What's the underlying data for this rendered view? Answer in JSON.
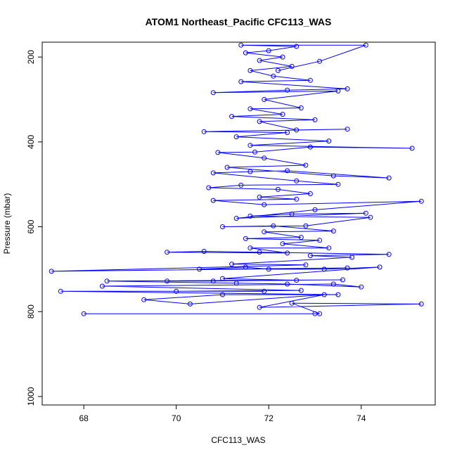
{
  "chart_data": {
    "type": "line",
    "title": "ATOM1 Northeast_Pacific CFC113_WAS",
    "xlabel": "CFC113_WAS",
    "ylabel": "Pressure (mbar)",
    "xlim": [
      67.1,
      75.6
    ],
    "ylim": [
      1020,
      165
    ],
    "y_reversed": true,
    "x_ticks": [
      68,
      70,
      72,
      74
    ],
    "y_ticks": [
      200,
      400,
      600,
      800,
      1000
    ],
    "grid": false,
    "legend": "none",
    "series": [
      {
        "color": "#0000ff",
        "marker": "open-circle",
        "points": [
          [
            68.0,
            805
          ],
          [
            73.0,
            805
          ],
          [
            73.1,
            805
          ],
          [
            72.5,
            780
          ],
          [
            75.3,
            782
          ],
          [
            71.8,
            790
          ],
          [
            73.2,
            760
          ],
          [
            70.3,
            782
          ],
          [
            69.3,
            772
          ],
          [
            71.0,
            760
          ],
          [
            73.5,
            760
          ],
          [
            67.5,
            752
          ],
          [
            71.9,
            752
          ],
          [
            70.0,
            752
          ],
          [
            72.7,
            750
          ],
          [
            68.4,
            740
          ],
          [
            73.4,
            735
          ],
          [
            74.0,
            742
          ],
          [
            72.4,
            735
          ],
          [
            71.3,
            733
          ],
          [
            68.5,
            728
          ],
          [
            73.6,
            725
          ],
          [
            69.8,
            728
          ],
          [
            70.8,
            728
          ],
          [
            72.6,
            726
          ],
          [
            71.0,
            722
          ],
          [
            74.4,
            695
          ],
          [
            73.2,
            700
          ],
          [
            72.0,
            700
          ],
          [
            71.5,
            695
          ],
          [
            70.5,
            700
          ],
          [
            73.7,
            697
          ],
          [
            67.3,
            705
          ],
          [
            72.8,
            690
          ],
          [
            71.2,
            688
          ],
          [
            73.8,
            672
          ],
          [
            72.9,
            668
          ],
          [
            74.6,
            665
          ],
          [
            71.8,
            660
          ],
          [
            70.6,
            658
          ],
          [
            69.8,
            660
          ],
          [
            72.4,
            662
          ],
          [
            71.6,
            650
          ],
          [
            73.3,
            650
          ],
          [
            72.3,
            640
          ],
          [
            73.1,
            632
          ],
          [
            71.5,
            628
          ],
          [
            72.7,
            625
          ],
          [
            71.9,
            612
          ],
          [
            73.4,
            610
          ],
          [
            72.1,
            598
          ],
          [
            71.0,
            600
          ],
          [
            72.8,
            598
          ],
          [
            74.2,
            578
          ],
          [
            71.6,
            575
          ],
          [
            72.5,
            570
          ],
          [
            74.1,
            568
          ],
          [
            71.3,
            580
          ],
          [
            73.0,
            560
          ],
          [
            75.3,
            540
          ],
          [
            71.9,
            548
          ],
          [
            70.8,
            538
          ],
          [
            72.6,
            535
          ],
          [
            71.8,
            530
          ],
          [
            72.9,
            522
          ],
          [
            72.2,
            512
          ],
          [
            70.7,
            508
          ],
          [
            71.4,
            502
          ],
          [
            73.5,
            500
          ],
          [
            72.6,
            492
          ],
          [
            70.8,
            473
          ],
          [
            71.6,
            470
          ],
          [
            72.4,
            468
          ],
          [
            74.6,
            485
          ],
          [
            73.4,
            480
          ],
          [
            71.1,
            460
          ],
          [
            72.8,
            455
          ],
          [
            71.9,
            438
          ],
          [
            70.9,
            425
          ],
          [
            71.7,
            424
          ],
          [
            72.9,
            412
          ],
          [
            75.1,
            415
          ],
          [
            71.6,
            408
          ],
          [
            73.3,
            398
          ],
          [
            71.3,
            388
          ],
          [
            72.4,
            378
          ],
          [
            70.6,
            376
          ],
          [
            73.7,
            370
          ],
          [
            72.6,
            372
          ],
          [
            71.8,
            352
          ],
          [
            73.0,
            348
          ],
          [
            71.2,
            340
          ],
          [
            72.3,
            335
          ],
          [
            71.6,
            322
          ],
          [
            72.7,
            320
          ],
          [
            71.9,
            300
          ],
          [
            73.5,
            280
          ],
          [
            70.8,
            284
          ],
          [
            72.4,
            278
          ],
          [
            73.7,
            275
          ],
          [
            71.4,
            258
          ],
          [
            72.9,
            255
          ],
          [
            72.1,
            245
          ],
          [
            71.6,
            232
          ],
          [
            72.5,
            222
          ],
          [
            71.8,
            208
          ],
          [
            72.3,
            200
          ],
          [
            71.5,
            190
          ],
          [
            72.0,
            185
          ],
          [
            72.6,
            175
          ],
          [
            71.4,
            172
          ],
          [
            74.1,
            172
          ],
          [
            73.1,
            210
          ],
          [
            72.2,
            232
          ]
        ]
      }
    ]
  }
}
